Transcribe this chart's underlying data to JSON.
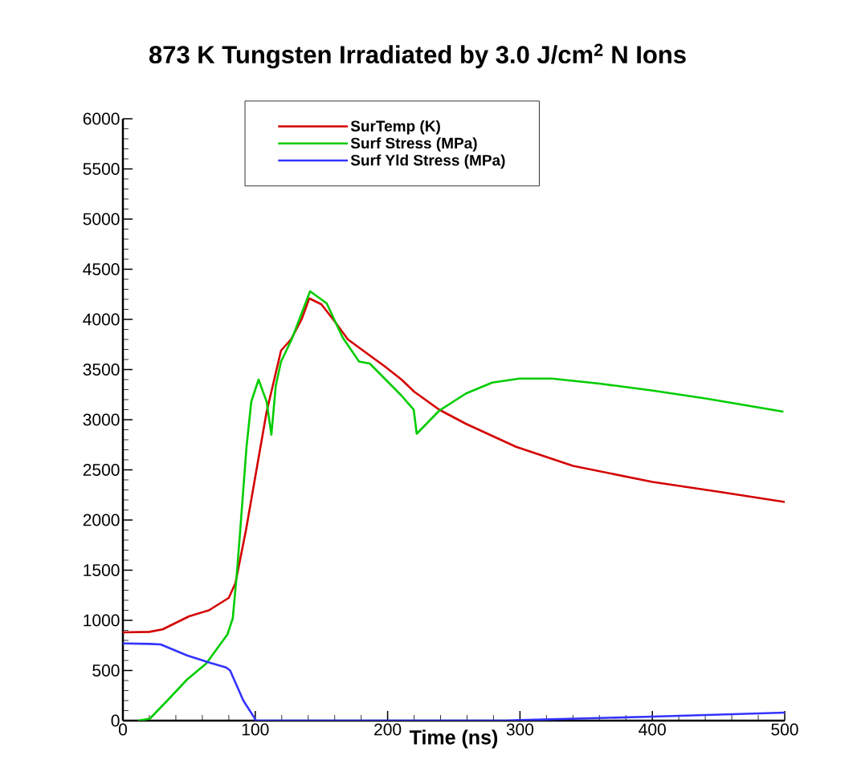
{
  "chart_data": {
    "type": "line",
    "title": "873 K Tungsten Irradiated by 3.0 J/cm$^{2}$ N Ions",
    "xlabel": "Time (ns)",
    "xlim": [
      0,
      500
    ],
    "xticks": [
      0,
      100,
      200,
      300,
      400,
      500
    ],
    "ylim": [
      0,
      6000
    ],
    "yticks": [
      0,
      500,
      1000,
      1500,
      2000,
      2500,
      3000,
      3500,
      4000,
      4500,
      5000,
      5500,
      6000
    ],
    "legend": "top",
    "grid": false,
    "marker": "none",
    "line_style": "solid",
    "series": [
      {
        "name": "SurTemp (K)",
        "color": "#d40000",
        "x": [
          0,
          20,
          30,
          50,
          65,
          80,
          85,
          93,
          100,
          108.6,
          119.5,
          127,
          135,
          140.8,
          150,
          160,
          170,
          184.5,
          198,
          210.5,
          220,
          239,
          259,
          297,
          340,
          400,
          451,
          500
        ],
        "values": [
          880,
          885,
          910,
          1040,
          1100,
          1224,
          1370,
          1900,
          2430,
          3080,
          3690,
          3800,
          4000,
          4210,
          4150,
          3980,
          3800,
          3660,
          3530,
          3400,
          3280,
          3100,
          2960,
          2730,
          2540,
          2380,
          2280,
          2180
        ]
      },
      {
        "name": "Surf Stress (MPa)",
        "color": "#00cc00",
        "x": [
          11.5,
          20.4,
          35,
          48.5,
          63,
          79,
          83,
          86,
          89,
          93.4,
          97,
          102.5,
          108.6,
          112.2,
          115.5,
          119.5,
          127.5,
          141.4,
          154,
          166,
          178.4,
          186.5,
          210.5,
          219.7,
          222,
          239,
          259,
          279,
          299.6,
          324,
          360,
          400.5,
          441,
          499
        ],
        "values": [
          0,
          20,
          220,
          410,
          570,
          860,
          1020,
          1450,
          1960,
          2730,
          3180,
          3400,
          3180,
          2850,
          3340,
          3580,
          3800,
          4280,
          4160,
          3820,
          3580,
          3560,
          3240,
          3100,
          2860,
          3090,
          3260,
          3370,
          3410,
          3410,
          3360,
          3290,
          3210,
          3080
        ]
      },
      {
        "name": "Surf Yld Stress (MPa)",
        "color": "#3333ff",
        "x": [
          0,
          20,
          28.5,
          48.5,
          65,
          78,
          81,
          91,
          99.5,
          100,
          290,
          300,
          400,
          500
        ],
        "values": [
          770,
          765,
          760,
          650,
          580,
          530,
          500,
          200,
          25,
          0,
          0,
          5,
          40,
          80
        ]
      }
    ]
  }
}
